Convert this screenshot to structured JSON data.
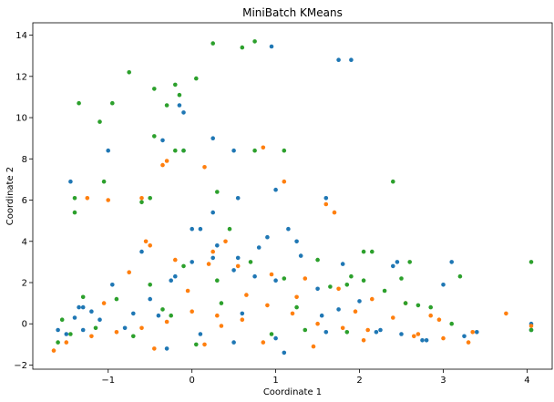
{
  "chart_data": {
    "type": "scatter",
    "title": "MiniBatch KMeans",
    "xlabel": "Coordinate 1",
    "ylabel": "Coordinate 2",
    "xlim": [
      -1.9,
      4.3
    ],
    "ylim": [
      -2.2,
      14.6
    ],
    "xticks": [
      -1,
      0,
      1,
      2,
      3,
      4
    ],
    "yticks": [
      -2,
      0,
      2,
      4,
      6,
      8,
      10,
      12,
      14
    ],
    "xtick_labels": [
      "−1",
      "0",
      "1",
      "2",
      "3",
      "4"
    ],
    "ytick_labels": [
      "−2",
      "0",
      "2",
      "4",
      "6",
      "8",
      "10",
      "12",
      "14"
    ],
    "grid": false,
    "legend": "none",
    "colors": [
      "#1f77b4",
      "#ff7f0e",
      "#2ca02c"
    ],
    "series": [
      {
        "color": "#1f77b4",
        "x": [
          -1.45,
          -1.0,
          -0.35,
          -0.15,
          -0.1,
          -0.1,
          0.25,
          0.0,
          0.1,
          0.25,
          0.55,
          0.95,
          1.0,
          0.5,
          0.9,
          0.55,
          1.75,
          1.9,
          1.6,
          2.45,
          3.1,
          1.15,
          -1.3,
          -1.2,
          -1.35,
          -1.5,
          -1.3,
          -0.7,
          -0.5,
          -0.25,
          0.0,
          0.25,
          0.5,
          0.75,
          1.0,
          1.25,
          1.5,
          1.75,
          2.0,
          2.25,
          2.5,
          2.75,
          3.0,
          3.25,
          3.4,
          -1.6,
          -1.4,
          -1.1,
          -0.8,
          -0.4,
          0.1,
          0.6,
          1.1,
          1.6,
          2.2,
          2.8,
          4.05,
          4.05,
          -0.95,
          -0.6,
          -0.2,
          0.3,
          0.8,
          1.3,
          1.8,
          2.4,
          1.0,
          0.5,
          -0.3,
          1.55
        ],
        "y": [
          6.9,
          8.4,
          8.9,
          10.6,
          10.25,
          8.4,
          9.0,
          4.6,
          4.6,
          5.4,
          6.1,
          13.45,
          6.5,
          8.4,
          4.2,
          3.2,
          12.8,
          12.8,
          6.1,
          3.0,
          3.0,
          4.6,
          0.8,
          0.6,
          0.8,
          -0.5,
          -0.3,
          0.5,
          1.2,
          2.1,
          3.0,
          3.2,
          2.6,
          2.3,
          2.1,
          4.0,
          1.7,
          0.7,
          1.1,
          -0.3,
          -0.5,
          -0.8,
          1.9,
          -0.6,
          -0.4,
          -0.3,
          0.3,
          0.2,
          -0.2,
          0.4,
          -0.5,
          0.5,
          -1.4,
          -0.4,
          -0.4,
          -0.8,
          0.0,
          -0.3,
          1.9,
          3.5,
          2.3,
          3.8,
          3.7,
          3.3,
          2.9,
          2.8,
          -0.7,
          -0.9,
          -1.2,
          0.4
        ]
      },
      {
        "color": "#ff7f0e",
        "x": [
          -1.25,
          -1.0,
          -0.6,
          -0.35,
          -0.3,
          0.15,
          0.25,
          0.85,
          1.1,
          1.6,
          1.7,
          0.4,
          -0.55,
          -0.5,
          -0.2,
          0.2,
          0.55,
          0.95,
          1.35,
          1.75,
          2.15,
          2.55,
          2.95,
          3.35,
          3.75,
          4.05,
          -1.65,
          -1.5,
          -1.2,
          -0.9,
          -0.6,
          -0.3,
          0.0,
          0.3,
          0.6,
          0.9,
          1.2,
          1.5,
          1.8,
          2.1,
          2.4,
          2.7,
          3.0,
          3.3,
          -0.45,
          0.15,
          0.85,
          1.45,
          2.05,
          2.65,
          -0.05,
          0.65,
          1.25,
          -1.05,
          1.95,
          0.35,
          -0.75,
          2.85
        ],
        "y": [
          6.1,
          6.0,
          6.1,
          7.7,
          7.9,
          7.6,
          3.5,
          8.55,
          6.9,
          5.8,
          5.4,
          4.0,
          4.0,
          3.8,
          3.1,
          2.9,
          2.8,
          2.4,
          2.2,
          1.7,
          1.2,
          1.0,
          0.2,
          -0.4,
          0.5,
          -0.1,
          -1.3,
          -0.9,
          -0.6,
          -0.4,
          -0.2,
          0.1,
          0.6,
          0.4,
          0.2,
          0.9,
          0.5,
          0.0,
          -0.2,
          -0.3,
          0.3,
          -0.5,
          -0.7,
          -0.9,
          -1.2,
          -1.0,
          -0.9,
          -1.1,
          -0.8,
          -0.6,
          1.6,
          1.4,
          1.3,
          1.0,
          0.6,
          -0.1,
          2.5,
          0.4
        ]
      },
      {
        "color": "#2ca02c",
        "x": [
          -1.35,
          -1.4,
          -1.4,
          -1.1,
          -0.95,
          -1.05,
          -0.75,
          -0.45,
          -0.3,
          -0.2,
          -0.15,
          -0.1,
          -0.45,
          -0.5,
          -0.6,
          0.05,
          0.25,
          0.6,
          0.75,
          1.1,
          0.75,
          -0.2,
          0.3,
          2.4,
          2.6,
          2.5,
          2.05,
          2.15,
          1.85,
          4.05,
          4.05,
          -1.6,
          -1.3,
          -0.9,
          -0.5,
          -0.1,
          0.3,
          0.7,
          1.1,
          1.5,
          1.9,
          2.3,
          2.7,
          3.1,
          -1.45,
          -1.15,
          -0.35,
          0.45,
          1.25,
          1.65,
          2.05,
          2.85,
          3.2,
          0.05,
          -0.7,
          1.35,
          0.95,
          -0.25,
          -1.55,
          0.35,
          1.85,
          2.55
        ],
        "y": [
          10.7,
          6.1,
          5.4,
          9.8,
          10.7,
          6.9,
          12.2,
          11.4,
          10.6,
          11.6,
          11.1,
          8.4,
          9.1,
          6.1,
          5.9,
          11.9,
          13.6,
          13.4,
          13.7,
          8.4,
          8.4,
          8.4,
          6.4,
          6.9,
          3.0,
          2.2,
          3.5,
          3.5,
          1.9,
          3.0,
          -0.3,
          -0.9,
          1.3,
          1.2,
          1.9,
          2.8,
          2.1,
          3.0,
          2.2,
          3.1,
          2.3,
          1.6,
          0.9,
          0.0,
          -0.5,
          -0.2,
          0.7,
          4.6,
          0.8,
          1.8,
          2.1,
          0.8,
          2.3,
          -1.0,
          -0.6,
          -0.3,
          -0.5,
          0.4,
          0.2,
          1.0,
          -0.4,
          1.0
        ]
      }
    ]
  }
}
